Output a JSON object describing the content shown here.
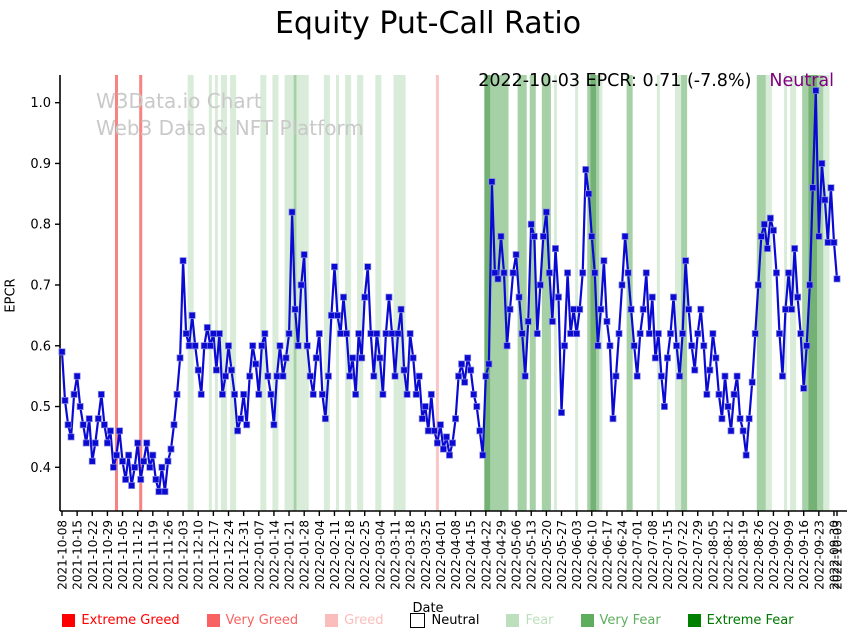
{
  "title": "Equity Put-Call Ratio",
  "watermark": {
    "line1": "W3Data.io Chart",
    "line2": "Web3 Data & NFT Platform"
  },
  "annotation": {
    "text": "2022-10-03 EPCR: 0.71 (-7.8%)",
    "sentiment": "Neutral",
    "sentiment_color": "#800080"
  },
  "legend": {
    "items": [
      {
        "label": "Extreme Greed",
        "color": "#ff0000",
        "text_color": "#ff0000",
        "border": "none"
      },
      {
        "label": "Very Greed",
        "color": "#f96262",
        "text_color": "#f96262",
        "border": "none"
      },
      {
        "label": "Greed",
        "color": "#fbbcbc",
        "text_color": "#fbbcbc",
        "border": "none"
      },
      {
        "label": "Neutral",
        "color": "#ffffff",
        "text_color": "#000000",
        "border": "#000000"
      },
      {
        "label": "Fear",
        "color": "#bedfbe",
        "text_color": "#bedfbe",
        "border": "none"
      },
      {
        "label": "Very Fear",
        "color": "#5fae5f",
        "text_color": "#5fae5f",
        "border": "none"
      },
      {
        "label": "Extreme Fear",
        "color": "#008000",
        "text_color": "#007800",
        "border": "none"
      }
    ]
  },
  "chart_data": {
    "type": "line",
    "title": "Equity Put-Call Ratio",
    "xlabel": "Date",
    "ylabel": "EPCR",
    "ylim": [
      0.35,
      1.05
    ],
    "yticks": [
      0.4,
      0.5,
      0.6,
      0.7,
      0.8,
      0.9,
      1.0
    ],
    "grid": false,
    "legend_position": "bottom",
    "line_color": "#0a0ad2",
    "marker": "square",
    "start_date": "2021-10-08",
    "end_date": "2022-10-03",
    "frequency": "trading-days",
    "x_tick_labels": [
      "2021-10-08",
      "2021-10-15",
      "2021-10-22",
      "2021-10-29",
      "2021-11-05",
      "2021-11-12",
      "2021-11-19",
      "2021-11-26",
      "2021-12-03",
      "2021-12-10",
      "2021-12-17",
      "2021-12-24",
      "2021-12-31",
      "2022-01-07",
      "2022-01-14",
      "2022-01-21",
      "2022-01-28",
      "2022-02-04",
      "2022-02-11",
      "2022-02-18",
      "2022-02-25",
      "2022-03-04",
      "2022-03-11",
      "2022-03-18",
      "2022-03-25",
      "2022-04-01",
      "2022-04-08",
      "2022-04-15",
      "2022-04-22",
      "2022-04-29",
      "2022-05-06",
      "2022-05-13",
      "2022-05-20",
      "2022-05-27",
      "2022-06-03",
      "2022-06-10",
      "2022-06-17",
      "2022-06-24",
      "2022-07-01",
      "2022-07-08",
      "2022-07-15",
      "2022-07-22",
      "2022-07-29",
      "2022-08-05",
      "2022-08-12",
      "2022-08-19",
      "2022-08-26",
      "2022-09-02",
      "2022-09-09",
      "2022-09-16",
      "2022-09-23",
      "2022-09-30",
      "2022-10-03"
    ],
    "values": [
      0.59,
      0.51,
      0.47,
      0.45,
      0.52,
      0.55,
      0.5,
      0.47,
      0.44,
      0.48,
      0.41,
      0.44,
      0.48,
      0.52,
      0.47,
      0.44,
      0.46,
      0.4,
      0.42,
      0.46,
      0.41,
      0.38,
      0.42,
      0.37,
      0.4,
      0.44,
      0.38,
      0.41,
      0.44,
      0.4,
      0.42,
      0.38,
      0.36,
      0.4,
      0.36,
      0.41,
      0.43,
      0.47,
      0.52,
      0.58,
      0.74,
      0.62,
      0.6,
      0.65,
      0.6,
      0.56,
      0.52,
      0.6,
      0.63,
      0.6,
      0.62,
      0.56,
      0.62,
      0.52,
      0.55,
      0.6,
      0.56,
      0.52,
      0.46,
      0.48,
      0.52,
      0.47,
      0.55,
      0.6,
      0.57,
      0.52,
      0.6,
      0.62,
      0.55,
      0.52,
      0.47,
      0.55,
      0.6,
      0.55,
      0.58,
      0.62,
      0.82,
      0.66,
      0.6,
      0.7,
      0.75,
      0.6,
      0.55,
      0.52,
      0.58,
      0.62,
      0.52,
      0.48,
      0.55,
      0.65,
      0.73,
      0.65,
      0.62,
      0.68,
      0.62,
      0.55,
      0.58,
      0.52,
      0.62,
      0.58,
      0.68,
      0.73,
      0.62,
      0.55,
      0.62,
      0.58,
      0.52,
      0.62,
      0.68,
      0.62,
      0.55,
      0.62,
      0.66,
      0.56,
      0.52,
      0.62,
      0.58,
      0.52,
      0.55,
      0.48,
      0.5,
      0.46,
      0.52,
      0.46,
      0.44,
      0.47,
      0.43,
      0.45,
      0.42,
      0.44,
      0.48,
      0.55,
      0.57,
      0.54,
      0.58,
      0.56,
      0.52,
      0.5,
      0.46,
      0.42,
      0.55,
      0.57,
      0.87,
      0.72,
      0.71,
      0.78,
      0.72,
      0.6,
      0.66,
      0.72,
      0.75,
      0.68,
      0.62,
      0.55,
      0.64,
      0.8,
      0.78,
      0.62,
      0.7,
      0.78,
      0.82,
      0.72,
      0.64,
      0.76,
      0.68,
      0.49,
      0.6,
      0.72,
      0.62,
      0.66,
      0.62,
      0.66,
      0.72,
      0.89,
      0.85,
      0.78,
      0.72,
      0.6,
      0.66,
      0.74,
      0.64,
      0.6,
      0.48,
      0.55,
      0.62,
      0.7,
      0.78,
      0.72,
      0.66,
      0.6,
      0.55,
      0.62,
      0.66,
      0.72,
      0.62,
      0.68,
      0.58,
      0.62,
      0.55,
      0.5,
      0.58,
      0.62,
      0.68,
      0.6,
      0.55,
      0.62,
      0.74,
      0.66,
      0.6,
      0.56,
      0.62,
      0.66,
      0.6,
      0.52,
      0.56,
      0.62,
      0.58,
      0.52,
      0.48,
      0.55,
      0.5,
      0.46,
      0.52,
      0.55,
      0.48,
      0.46,
      0.42,
      0.48,
      0.54,
      0.62,
      0.7,
      0.78,
      0.8,
      0.76,
      0.81,
      0.79,
      0.72,
      0.62,
      0.55,
      0.66,
      0.72,
      0.66,
      0.76,
      0.68,
      0.62,
      0.53,
      0.6,
      0.7,
      0.86,
      1.02,
      0.78,
      0.9,
      0.84,
      0.77,
      0.86,
      0.77,
      0.71
    ],
    "band_colors": {
      "vg": "#f98282",
      "g": "#f9c6c6",
      "f": "#d9ecd9",
      "vf": "#a6d0a6",
      "ef": "#74b174"
    },
    "bands": [
      [
        18,
        18,
        "vg"
      ],
      [
        26,
        26,
        "vg"
      ],
      [
        124,
        124,
        "g"
      ],
      [
        42,
        43,
        "f"
      ],
      [
        49,
        49,
        "f"
      ],
      [
        51,
        51,
        "f"
      ],
      [
        53,
        54,
        "f"
      ],
      [
        56,
        57,
        "f"
      ],
      [
        66,
        67,
        "f"
      ],
      [
        70,
        71,
        "f"
      ],
      [
        74,
        76,
        "f"
      ],
      [
        77,
        77,
        "vf"
      ],
      [
        78,
        80,
        "f"
      ],
      [
        81,
        81,
        "f"
      ],
      [
        87,
        88,
        "f"
      ],
      [
        91,
        91,
        "f"
      ],
      [
        94,
        95,
        "f"
      ],
      [
        98,
        99,
        "f"
      ],
      [
        104,
        105,
        "f"
      ],
      [
        110,
        113,
        "f"
      ],
      [
        140,
        141,
        "ef"
      ],
      [
        142,
        147,
        "vf"
      ],
      [
        151,
        153,
        "vf"
      ],
      [
        155,
        156,
        "vf"
      ],
      [
        159,
        161,
        "vf"
      ],
      [
        163,
        163,
        "f"
      ],
      [
        170,
        170,
        "f"
      ],
      [
        174,
        174,
        "vf"
      ],
      [
        175,
        176,
        "ef"
      ],
      [
        177,
        177,
        "vf"
      ],
      [
        178,
        178,
        "f"
      ],
      [
        187,
        188,
        "vf"
      ],
      [
        197,
        197,
        "f"
      ],
      [
        203,
        204,
        "f"
      ],
      [
        205,
        206,
        "vf"
      ],
      [
        230,
        232,
        "vf"
      ],
      [
        233,
        234,
        "f"
      ],
      [
        239,
        239,
        "f"
      ],
      [
        241,
        242,
        "f"
      ],
      [
        245,
        246,
        "vf"
      ],
      [
        247,
        249,
        "ef"
      ],
      [
        250,
        251,
        "vf"
      ],
      [
        252,
        253,
        "f"
      ]
    ]
  }
}
